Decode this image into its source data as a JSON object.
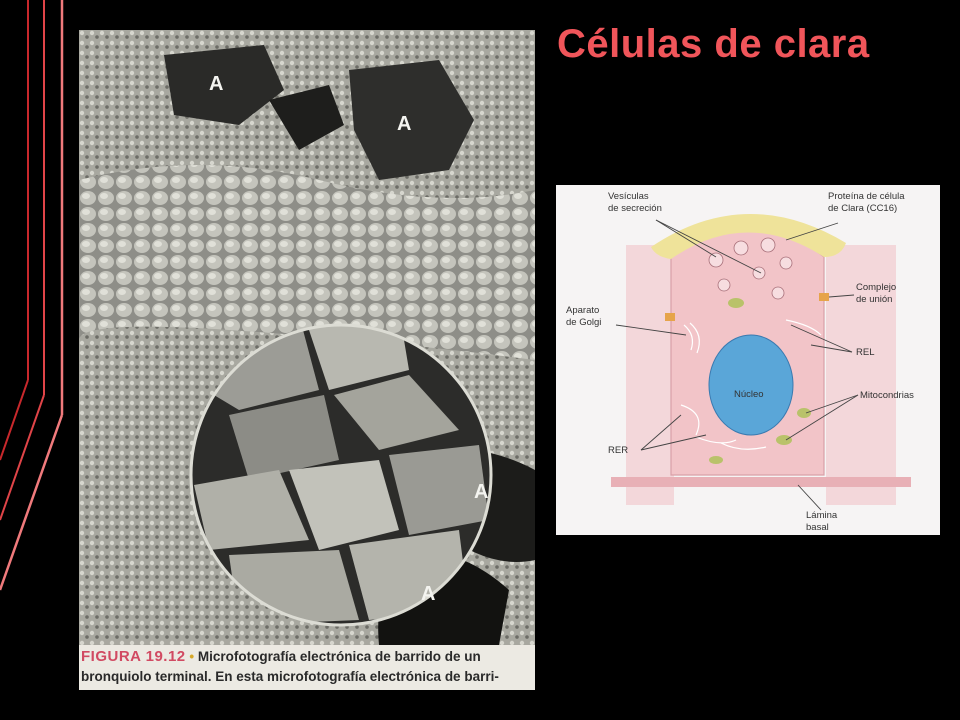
{
  "slide": {
    "title": "Células de clara"
  },
  "micrograph": {
    "airspace_labels": [
      "A",
      "A",
      "A",
      "A"
    ],
    "caption": {
      "figure_number": "FIGURA 19.12",
      "bullet": "•",
      "line1": "Microfotografía electrónica de barrido de un",
      "line2": "bronquiolo terminal. En esta microfotografía electrónica de barri-"
    }
  },
  "cell_diagram": {
    "labels": {
      "secretory_vesicles_1": "Vesículas",
      "secretory_vesicles_2": "de secreción",
      "club_protein_1": "Proteína de célula",
      "club_protein_2": "de Clara (CC16)",
      "junction_1": "Complejo",
      "junction_2": "de unión",
      "golgi_1": "Aparato",
      "golgi_2": "de Golgi",
      "rel": "REL",
      "nucleus": "Núcleo",
      "mitochondria": "Mitocondrias",
      "rer": "RER",
      "basal_lamina_1": "Lámina",
      "basal_lamina_2": "basal"
    },
    "colors": {
      "cytoplasm": "#f2c4c8",
      "nucleus": "#5aa6d8",
      "apical_secretion": "#efe39a",
      "mitochondria": "#b9c26a"
    }
  }
}
